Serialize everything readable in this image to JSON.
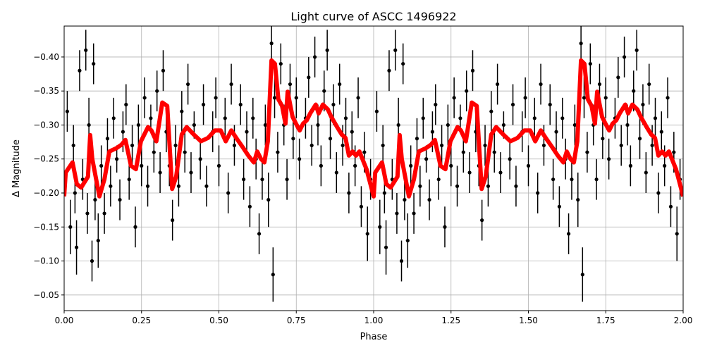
{
  "chart_data": {
    "type": "scatter",
    "title": "Light curve of ASCC 1496922",
    "xlabel": "Phase",
    "ylabel": "Δ Magnitude",
    "xlim": [
      0,
      2
    ],
    "ylim": [
      -0.4455,
      -0.027
    ],
    "y_inverted": true,
    "grid": true,
    "xticks": [
      "0.00",
      "0.25",
      "0.50",
      "0.75",
      "1.00",
      "1.25",
      "1.50",
      "1.75",
      "2.00"
    ],
    "xtick_values": [
      0,
      0.25,
      0.5,
      0.75,
      1,
      1.25,
      1.5,
      1.75,
      2
    ],
    "yticks": [
      "−0.40",
      "−0.35",
      "−0.30",
      "−0.25",
      "−0.20",
      "−0.15",
      "−0.10",
      "−0.05"
    ],
    "ytick_values": [
      -0.4,
      -0.35,
      -0.3,
      -0.25,
      -0.2,
      -0.15,
      -0.1,
      -0.05
    ],
    "colors": {
      "points": "#000000",
      "model": "#ff0000",
      "grid": "#b0b0b0"
    },
    "phase_repeated": [
      0,
      1
    ],
    "points": [
      [
        0.01,
        -0.32,
        0.03
      ],
      [
        0.02,
        -0.15,
        0.04
      ],
      [
        0.03,
        -0.27,
        0.03
      ],
      [
        0.035,
        -0.2,
        0.03
      ],
      [
        0.04,
        -0.12,
        0.04
      ],
      [
        0.05,
        -0.38,
        0.03
      ],
      [
        0.06,
        -0.22,
        0.03
      ],
      [
        0.07,
        -0.41,
        0.03
      ],
      [
        0.075,
        -0.17,
        0.03
      ],
      [
        0.08,
        -0.3,
        0.04
      ],
      [
        0.09,
        -0.1,
        0.03
      ],
      [
        0.095,
        -0.39,
        0.03
      ],
      [
        0.1,
        -0.19,
        0.03
      ],
      [
        0.11,
        -0.13,
        0.04
      ],
      [
        0.12,
        -0.24,
        0.03
      ],
      [
        0.13,
        -0.17,
        0.03
      ],
      [
        0.14,
        -0.28,
        0.03
      ],
      [
        0.15,
        -0.21,
        0.03
      ],
      [
        0.16,
        -0.31,
        0.03
      ],
      [
        0.17,
        -0.25,
        0.02
      ],
      [
        0.18,
        -0.19,
        0.03
      ],
      [
        0.19,
        -0.29,
        0.03
      ],
      [
        0.2,
        -0.33,
        0.03
      ],
      [
        0.21,
        -0.22,
        0.03
      ],
      [
        0.22,
        -0.27,
        0.03
      ],
      [
        0.23,
        -0.15,
        0.03
      ],
      [
        0.24,
        -0.3,
        0.03
      ],
      [
        0.25,
        -0.24,
        0.03
      ],
      [
        0.26,
        -0.34,
        0.03
      ],
      [
        0.27,
        -0.21,
        0.03
      ],
      [
        0.28,
        -0.31,
        0.02
      ],
      [
        0.29,
        -0.26,
        0.03
      ],
      [
        0.3,
        -0.35,
        0.03
      ],
      [
        0.31,
        -0.23,
        0.03
      ],
      [
        0.32,
        -0.38,
        0.03
      ],
      [
        0.33,
        -0.29,
        0.03
      ],
      [
        0.34,
        -0.24,
        0.03
      ],
      [
        0.35,
        -0.16,
        0.03
      ],
      [
        0.36,
        -0.27,
        0.03
      ],
      [
        0.37,
        -0.21,
        0.03
      ],
      [
        0.38,
        -0.32,
        0.03
      ],
      [
        0.39,
        -0.26,
        0.03
      ],
      [
        0.4,
        -0.36,
        0.03
      ],
      [
        0.41,
        -0.23,
        0.03
      ],
      [
        0.42,
        -0.3,
        0.02
      ],
      [
        0.44,
        -0.25,
        0.03
      ],
      [
        0.45,
        -0.33,
        0.03
      ],
      [
        0.46,
        -0.21,
        0.03
      ],
      [
        0.48,
        -0.29,
        0.03
      ],
      [
        0.49,
        -0.34,
        0.03
      ],
      [
        0.5,
        -0.24,
        0.03
      ],
      [
        0.52,
        -0.31,
        0.03
      ],
      [
        0.53,
        -0.2,
        0.03
      ],
      [
        0.54,
        -0.36,
        0.03
      ],
      [
        0.55,
        -0.27,
        0.03
      ],
      [
        0.57,
        -0.33,
        0.03
      ],
      [
        0.58,
        -0.22,
        0.03
      ],
      [
        0.59,
        -0.29,
        0.03
      ],
      [
        0.6,
        -0.18,
        0.03
      ],
      [
        0.61,
        -0.31,
        0.03
      ],
      [
        0.62,
        -0.25,
        0.03
      ],
      [
        0.63,
        -0.14,
        0.03
      ],
      [
        0.64,
        -0.22,
        0.03
      ],
      [
        0.65,
        -0.3,
        0.03
      ],
      [
        0.66,
        -0.19,
        0.04
      ],
      [
        0.67,
        -0.42,
        0.04
      ],
      [
        0.675,
        -0.08,
        0.04
      ],
      [
        0.68,
        -0.34,
        0.03
      ],
      [
        0.69,
        -0.26,
        0.03
      ],
      [
        0.7,
        -0.39,
        0.03
      ],
      [
        0.71,
        -0.3,
        0.03
      ],
      [
        0.72,
        -0.22,
        0.03
      ],
      [
        0.73,
        -0.36,
        0.03
      ],
      [
        0.74,
        -0.28,
        0.03
      ],
      [
        0.75,
        -0.34,
        0.03
      ],
      [
        0.76,
        -0.25,
        0.03
      ],
      [
        0.78,
        -0.31,
        0.03
      ],
      [
        0.79,
        -0.37,
        0.03
      ],
      [
        0.8,
        -0.27,
        0.03
      ],
      [
        0.81,
        -0.4,
        0.03
      ],
      [
        0.82,
        -0.3,
        0.03
      ],
      [
        0.83,
        -0.24,
        0.03
      ],
      [
        0.84,
        -0.35,
        0.03
      ],
      [
        0.85,
        -0.41,
        0.03
      ],
      [
        0.86,
        -0.28,
        0.03
      ],
      [
        0.87,
        -0.33,
        0.03
      ],
      [
        0.88,
        -0.23,
        0.03
      ],
      [
        0.89,
        -0.36,
        0.03
      ],
      [
        0.9,
        -0.27,
        0.03
      ],
      [
        0.91,
        -0.31,
        0.03
      ],
      [
        0.92,
        -0.2,
        0.03
      ],
      [
        0.93,
        -0.29,
        0.03
      ],
      [
        0.94,
        -0.24,
        0.03
      ],
      [
        0.95,
        -0.34,
        0.03
      ],
      [
        0.96,
        -0.18,
        0.03
      ],
      [
        0.97,
        -0.26,
        0.03
      ],
      [
        0.98,
        -0.14,
        0.04
      ],
      [
        0.99,
        -0.22,
        0.03
      ]
    ],
    "model_curve": [
      [
        0.0,
        -0.195
      ],
      [
        0.005,
        -0.23
      ],
      [
        0.027,
        -0.245
      ],
      [
        0.041,
        -0.213
      ],
      [
        0.055,
        -0.208
      ],
      [
        0.077,
        -0.224
      ],
      [
        0.084,
        -0.285
      ],
      [
        0.091,
        -0.25
      ],
      [
        0.114,
        -0.195
      ],
      [
        0.13,
        -0.22
      ],
      [
        0.146,
        -0.261
      ],
      [
        0.169,
        -0.266
      ],
      [
        0.185,
        -0.271
      ],
      [
        0.198,
        -0.278
      ],
      [
        0.216,
        -0.24
      ],
      [
        0.232,
        -0.235
      ],
      [
        0.248,
        -0.276
      ],
      [
        0.271,
        -0.297
      ],
      [
        0.282,
        -0.292
      ],
      [
        0.298,
        -0.276
      ],
      [
        0.317,
        -0.333
      ],
      [
        0.333,
        -0.328
      ],
      [
        0.349,
        -0.206
      ],
      [
        0.362,
        -0.224
      ],
      [
        0.38,
        -0.286
      ],
      [
        0.396,
        -0.297
      ],
      [
        0.419,
        -0.286
      ],
      [
        0.442,
        -0.276
      ],
      [
        0.465,
        -0.281
      ],
      [
        0.487,
        -0.292
      ],
      [
        0.506,
        -0.292
      ],
      [
        0.522,
        -0.276
      ],
      [
        0.54,
        -0.292
      ],
      [
        0.556,
        -0.281
      ],
      [
        0.579,
        -0.266
      ],
      [
        0.595,
        -0.255
      ],
      [
        0.613,
        -0.245
      ],
      [
        0.624,
        -0.261
      ],
      [
        0.636,
        -0.25
      ],
      [
        0.647,
        -0.245
      ],
      [
        0.658,
        -0.276
      ],
      [
        0.67,
        -0.395
      ],
      [
        0.681,
        -0.39
      ],
      [
        0.692,
        -0.338
      ],
      [
        0.704,
        -0.328
      ],
      [
        0.715,
        -0.302
      ],
      [
        0.722,
        -0.349
      ],
      [
        0.738,
        -0.312
      ],
      [
        0.749,
        -0.302
      ],
      [
        0.761,
        -0.292
      ],
      [
        0.772,
        -0.302
      ],
      [
        0.784,
        -0.307
      ],
      [
        0.795,
        -0.317
      ],
      [
        0.813,
        -0.33
      ],
      [
        0.822,
        -0.317
      ],
      [
        0.836,
        -0.33
      ],
      [
        0.852,
        -0.323
      ],
      [
        0.863,
        -0.312
      ],
      [
        0.882,
        -0.297
      ],
      [
        0.897,
        -0.286
      ],
      [
        0.909,
        -0.281
      ],
      [
        0.92,
        -0.255
      ],
      [
        0.932,
        -0.261
      ],
      [
        0.943,
        -0.255
      ],
      [
        0.954,
        -0.261
      ],
      [
        0.977,
        -0.235
      ],
      [
        1.0,
        -0.195
      ]
    ]
  }
}
